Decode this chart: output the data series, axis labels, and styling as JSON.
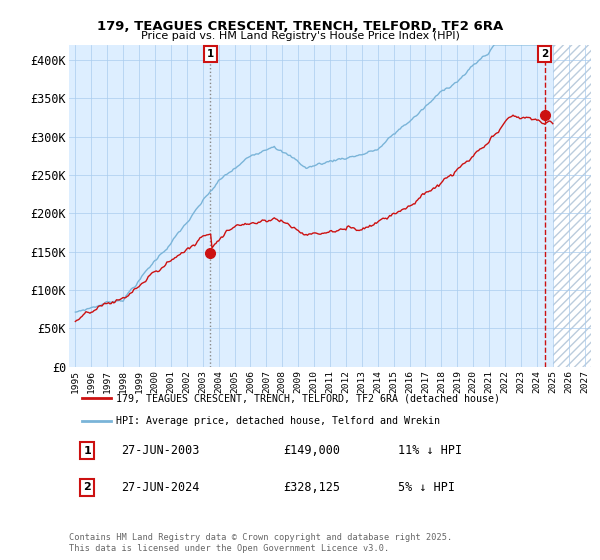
{
  "title_line1": "179, TEAGUES CRESCENT, TRENCH, TELFORD, TF2 6RA",
  "title_line2": "Price paid vs. HM Land Registry's House Price Index (HPI)",
  "ylim": [
    0,
    420000
  ],
  "yticks": [
    0,
    50000,
    100000,
    150000,
    200000,
    250000,
    300000,
    350000,
    400000
  ],
  "ytick_labels": [
    "£0",
    "£50K",
    "£100K",
    "£150K",
    "£200K",
    "£250K",
    "£300K",
    "£350K",
    "£400K"
  ],
  "xlim_start": 1994.6,
  "xlim_end": 2027.4,
  "sale1_date": 2003.49,
  "sale1_price": 149000,
  "sale2_date": 2024.49,
  "sale2_price": 328125,
  "legend_entry1": "179, TEAGUES CRESCENT, TRENCH, TELFORD, TF2 6RA (detached house)",
  "legend_entry2": "HPI: Average price, detached house, Telford and Wrekin",
  "annotation1_label": "1",
  "annotation1_date": "27-JUN-2003",
  "annotation1_price": "£149,000",
  "annotation1_hpi": "11% ↓ HPI",
  "annotation2_label": "2",
  "annotation2_date": "27-JUN-2024",
  "annotation2_price": "£328,125",
  "annotation2_hpi": "5% ↓ HPI",
  "footer": "Contains HM Land Registry data © Crown copyright and database right 2025.\nThis data is licensed under the Open Government Licence v3.0.",
  "hpi_color": "#7ab4d8",
  "price_color": "#cc1111",
  "marker_color": "#cc1111",
  "bg_color": "#ffffff",
  "chart_bg_color": "#ddeeff",
  "grid_color": "#aaccee",
  "hatch_color": "#bbccdd"
}
